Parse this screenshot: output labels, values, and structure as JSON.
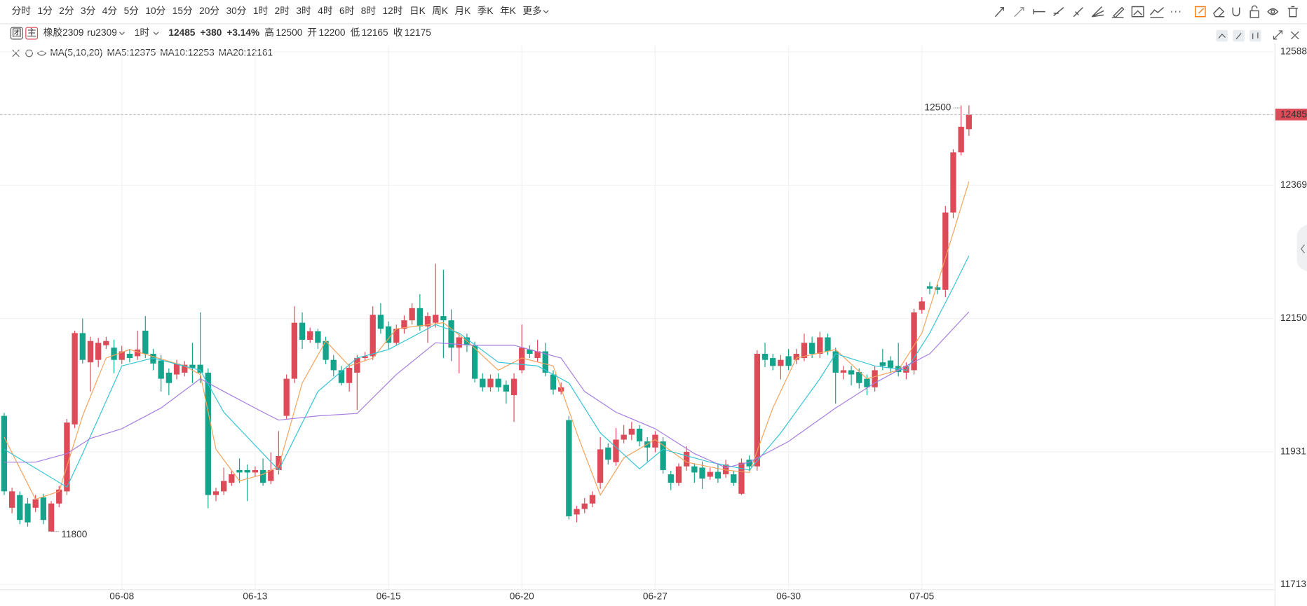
{
  "toolbar": {
    "periods": [
      "分时",
      "1分",
      "2分",
      "3分",
      "4分",
      "5分",
      "10分",
      "15分",
      "20分",
      "30分",
      "1时",
      "2时",
      "3时",
      "4时",
      "6时",
      "8时",
      "12时",
      "日K",
      "周K",
      "月K",
      "季K",
      "年K",
      "更多"
    ],
    "active": 10
  },
  "quote": {
    "badges": [
      "团",
      "主"
    ],
    "name": "橡胶2309",
    "code": "ru2309",
    "period": "1时",
    "last": "12485",
    "change": "+380",
    "change_pct": "+3.14%",
    "up_color": "#dd4a58",
    "stats": [
      {
        "label": "高",
        "value": "12500",
        "color": "#dd4a58"
      },
      {
        "label": "开",
        "value": "12200",
        "color": "#dd4a58"
      },
      {
        "label": "低",
        "value": "12165",
        "color": "#14a38b"
      },
      {
        "label": "收",
        "value": "12175",
        "color": "#555555"
      }
    ]
  },
  "chart_data": {
    "type": "candlestick",
    "indicator_label": "MA(5,10,20)",
    "up_color": "#dd4a58",
    "down_color": "#14a38b",
    "categories": [
      null,
      null,
      null,
      null,
      null,
      null,
      null,
      null,
      null,
      null,
      null,
      null,
      null,
      null,
      null,
      "06-08",
      null,
      null,
      null,
      null,
      null,
      null,
      null,
      null,
      null,
      null,
      null,
      null,
      null,
      null,
      null,
      null,
      "06-13",
      null,
      null,
      null,
      null,
      null,
      null,
      null,
      null,
      null,
      null,
      null,
      null,
      null,
      null,
      null,
      null,
      "06-15",
      null,
      null,
      null,
      null,
      null,
      null,
      null,
      null,
      null,
      null,
      null,
      null,
      null,
      null,
      null,
      null,
      "06-20",
      null,
      null,
      null,
      null,
      null,
      null,
      null,
      null,
      null,
      null,
      null,
      null,
      null,
      null,
      null,
      null,
      "06-27",
      null,
      null,
      null,
      null,
      null,
      null,
      null,
      null,
      null,
      null,
      null,
      null,
      null,
      null,
      null,
      null,
      "06-30",
      null,
      null,
      null,
      null,
      null,
      null,
      null,
      null,
      null,
      null,
      null,
      null,
      null,
      null,
      null,
      null,
      "07-05",
      null,
      null,
      null,
      null,
      null,
      null
    ],
    "open": [
      11990,
      11839,
      11860,
      11846,
      11839,
      11856,
      11800,
      11846,
      11866,
      11976,
      12126,
      12078,
      12082,
      12106,
      12102,
      12082,
      12092,
      12088,
      12130,
      12092,
      12081,
      12061,
      12058,
      12061,
      12074,
      12074,
      12061,
      11860,
      11866,
      11880,
      11901,
      11901,
      11897,
      11901,
      11883,
      11901,
      11990,
      12051,
      12143,
      12115,
      12129,
      12113,
      12082,
      12065,
      12044,
      12061,
      12085,
      12088,
      12156,
      12137,
      12110,
      12133,
      12147,
      12167,
      12137,
      12143,
      12154,
      12147,
      12102,
      12119,
      12106,
      12051,
      12037,
      12051,
      12041,
      12024,
      12065,
      12099,
      12085,
      12096,
      12058,
      12030,
      11983,
      11828,
      11837,
      11846,
      11880,
      11938,
      11914,
      11951,
      11959,
      11969,
      11948,
      11938,
      11948,
      11894,
      11880,
      11907,
      11907,
      11905,
      11890,
      11898,
      11894,
      11894,
      11862,
      11918,
      11907,
      12092,
      12085,
      12072,
      12088,
      12082,
      12085,
      12110,
      12092,
      12119,
      12096,
      12061,
      12065,
      12062,
      12051,
      12037,
      12078,
      12081,
      12072,
      12061,
      12065,
      12164,
      12203,
      12201,
      12197,
      12324,
      12423,
      12461
    ],
    "high": [
      11995,
      11872,
      11866,
      11855,
      11860,
      11862,
      11850,
      11875,
      11985,
      12130,
      12150,
      12120,
      12118,
      12120,
      12115,
      12105,
      12100,
      12130,
      12154,
      12100,
      12090,
      12068,
      12082,
      12080,
      12110,
      12160,
      12068,
      11872,
      11905,
      11900,
      11920,
      11910,
      11907,
      11920,
      11930,
      11965,
      12058,
      12170,
      12160,
      12135,
      12133,
      12120,
      12090,
      12072,
      12076,
      12090,
      12095,
      12170,
      12175,
      12145,
      12140,
      12155,
      12175,
      12190,
      12160,
      12240,
      12230,
      12165,
      12125,
      12125,
      12112,
      12060,
      12058,
      12060,
      12048,
      12060,
      12140,
      12106,
      12115,
      12110,
      12065,
      12045,
      11990,
      11842,
      11855,
      11866,
      11955,
      11945,
      11970,
      11975,
      11980,
      11975,
      11955,
      11965,
      11955,
      11900,
      11912,
      11940,
      11912,
      11915,
      11905,
      11912,
      11918,
      11900,
      11920,
      11925,
      12098,
      12110,
      12092,
      12090,
      12100,
      12100,
      12125,
      12120,
      12128,
      12125,
      12102,
      12072,
      12072,
      12068,
      12058,
      12072,
      12100,
      12088,
      12110,
      12078,
      12166,
      12185,
      12210,
      12206,
      12335,
      12428,
      12500,
      12500
    ],
    "low": [
      11860,
      11830,
      11812,
      11808,
      11832,
      11812,
      11800,
      11840,
      11860,
      11970,
      12076,
      12030,
      12070,
      12100,
      12060,
      12075,
      12078,
      12082,
      12085,
      12065,
      12030,
      12024,
      12050,
      12055,
      12044,
      12044,
      11838,
      11850,
      11860,
      11875,
      11880,
      11850,
      11890,
      11875,
      11878,
      11894,
      11985,
      12044,
      12100,
      12110,
      12100,
      12075,
      12055,
      12040,
      12030,
      12000,
      12080,
      12082,
      12125,
      12100,
      12105,
      12125,
      12140,
      12130,
      12110,
      12135,
      12085,
      12080,
      12060,
      12095,
      12045,
      12030,
      12030,
      12030,
      12010,
      11980,
      12060,
      12085,
      12078,
      12055,
      12025,
      12025,
      11820,
      11815,
      11830,
      11840,
      11870,
      11910,
      11908,
      11945,
      11950,
      11940,
      11915,
      11930,
      11895,
      11868,
      11875,
      11900,
      11880,
      11870,
      11885,
      11880,
      11888,
      11875,
      11860,
      11900,
      11900,
      12070,
      12065,
      12050,
      12065,
      12075,
      12080,
      12085,
      12085,
      12090,
      12010,
      12050,
      12040,
      12035,
      12024,
      12030,
      12065,
      12060,
      12055,
      12050,
      12058,
      12158,
      12190,
      12190,
      12185,
      12315,
      12418,
      12450
    ],
    "close": [
      11866,
      11866,
      11819,
      11815,
      11853,
      11819,
      11846,
      11869,
      11979,
      12126,
      12082,
      12113,
      12110,
      12113,
      12082,
      12096,
      12085,
      12099,
      12092,
      12076,
      12051,
      12044,
      12076,
      12074,
      12069,
      12061,
      11860,
      11866,
      11883,
      11894,
      11897,
      11897,
      11901,
      11880,
      11901,
      11924,
      12051,
      12143,
      12115,
      12129,
      12110,
      12082,
      12065,
      12044,
      12069,
      12085,
      12088,
      12156,
      12133,
      12110,
      12133,
      12147,
      12167,
      12137,
      12154,
      12156,
      12147,
      12102,
      12119,
      12106,
      12051,
      12037,
      12051,
      12037,
      12030,
      12051,
      12102,
      12092,
      12096,
      12061,
      12033,
      12037,
      11825,
      11837,
      11846,
      11860,
      11935,
      11918,
      11951,
      11959,
      11969,
      11948,
      11938,
      11959,
      11901,
      11880,
      11907,
      11931,
      11897,
      11887,
      11898,
      11887,
      11910,
      11880,
      11913,
      11907,
      12092,
      12082,
      12072,
      12082,
      12072,
      12092,
      12110,
      12092,
      12119,
      12096,
      12061,
      12065,
      12058,
      12044,
      12037,
      12065,
      12072,
      12069,
      12062,
      12072,
      12160,
      12178,
      12199,
      12197,
      12324,
      12423,
      12465,
      12485
    ],
    "series": [
      {
        "name": "MA5:12375",
        "color": "#f5a25b",
        "x": [
          0,
          4,
          7,
          10,
          13,
          16,
          23,
          25,
          27,
          30,
          33,
          35,
          38,
          41,
          44,
          47,
          50,
          56,
          59,
          63,
          66,
          70,
          73,
          76,
          79,
          83,
          87,
          92,
          95,
          98,
          101,
          106,
          110,
          114,
          117,
          120,
          123
        ],
        "values": [
          11955,
          11853,
          11866,
          11990,
          12085,
          12099,
          12072,
          12058,
          11935,
          11883,
          11894,
          11907,
          12044,
          12113,
          12072,
          12085,
          12133,
          12143,
          12113,
          12065,
          12085,
          12072,
          11962,
          11860,
          11921,
          11951,
          11914,
          11901,
          11897,
          12003,
          12085,
          12099,
          12051,
          12065,
          12126,
          12249,
          12375
        ]
      },
      {
        "name": "MA10:12253",
        "color": "#33c5d6",
        "x": [
          0,
          8,
          10,
          15,
          19,
          25,
          28,
          33,
          35,
          40,
          45,
          49,
          55,
          58,
          63,
          68,
          72,
          76,
          81,
          84,
          90,
          95,
          99,
          104,
          106,
          111,
          115,
          118,
          121,
          123
        ],
        "values": [
          11935,
          11873,
          11928,
          12072,
          12085,
          12065,
          11996,
          11928,
          11901,
          12030,
          12085,
          12099,
          12140,
          12126,
          12078,
          12072,
          12044,
          11962,
          11903,
          11935,
          11914,
          11901,
          11962,
          12051,
          12092,
          12072,
          12065,
          12126,
          12201,
          12253
        ]
      },
      {
        "name": "MA20:12161",
        "color": "#a67de0",
        "x": [
          0,
          4,
          8,
          11,
          15,
          20,
          25,
          28,
          33,
          35,
          40,
          45,
          50,
          55,
          60,
          65,
          71,
          74,
          78,
          83,
          88,
          92,
          95,
          100,
          106,
          111,
          115,
          118,
          123
        ],
        "values": [
          11914,
          11914,
          11928,
          11953,
          11969,
          12003,
          12051,
          12030,
          11996,
          11983,
          11990,
          11994,
          12058,
          12110,
          12106,
          12106,
          12085,
          12030,
          11996,
          11969,
          11928,
          11905,
          11914,
          11948,
          12003,
          12044,
          12072,
          12092,
          12161
        ]
      }
    ],
    "ylim": [
      11705,
      12598
    ],
    "yticks": [
      11713,
      11931,
      12150,
      12369,
      12588
    ],
    "ytick_colors": [
      "#14a38b",
      "#14a38b",
      "#14a38b",
      "#dd4a58",
      "#dd4a58"
    ],
    "grid": true,
    "last_price": 12485,
    "annotations": [
      {
        "index": 122,
        "value": 12500
      },
      {
        "index": 6,
        "value": 11800
      }
    ]
  }
}
